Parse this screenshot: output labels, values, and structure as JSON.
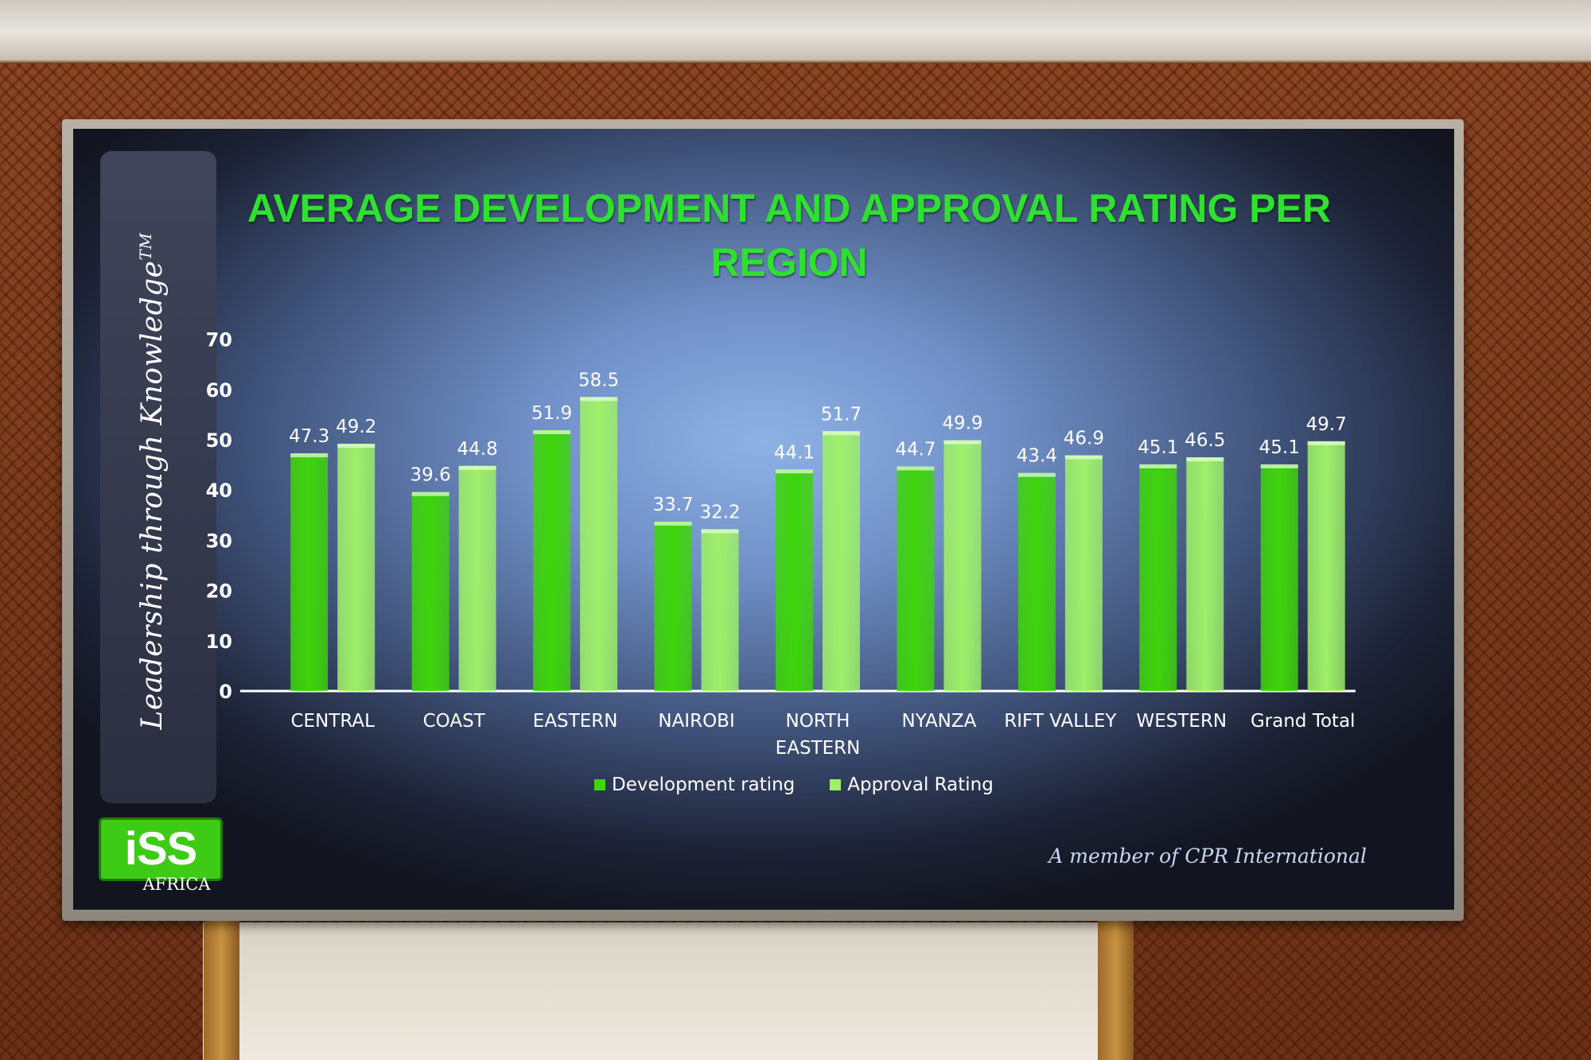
{
  "slide": {
    "tagline": "Leadership through Knowledge",
    "trademark": "TM",
    "logo_text": "iSS",
    "logo_subtext": "AFRICA",
    "footer": "A member of CPR International"
  },
  "colors": {
    "development": "#3fd40c",
    "approval": "#9ef06a",
    "title": "#2fe12f"
  },
  "chart_data": {
    "type": "bar",
    "title": "AVERAGE DEVELOPMENT AND APPROVAL RATING PER REGION",
    "categories": [
      "CENTRAL",
      "COAST",
      "EASTERN",
      "NAIROBI",
      "NORTH EASTERN",
      "NYANZA",
      "RIFT VALLEY",
      "WESTERN",
      "Grand Total"
    ],
    "series": [
      {
        "name": "Development rating",
        "values": [
          47.3,
          39.6,
          51.9,
          33.7,
          44.1,
          44.7,
          43.4,
          45.1,
          45.1
        ]
      },
      {
        "name": "Approval Rating",
        "values": [
          49.2,
          44.8,
          58.5,
          32.2,
          51.7,
          49.9,
          46.9,
          46.5,
          49.7
        ]
      }
    ],
    "yticks": [
      0,
      10,
      20,
      30,
      40,
      50,
      60,
      70
    ],
    "ylim": [
      0,
      70
    ],
    "xlabel": "",
    "ylabel": "",
    "grid": false,
    "legend_position": "bottom"
  }
}
